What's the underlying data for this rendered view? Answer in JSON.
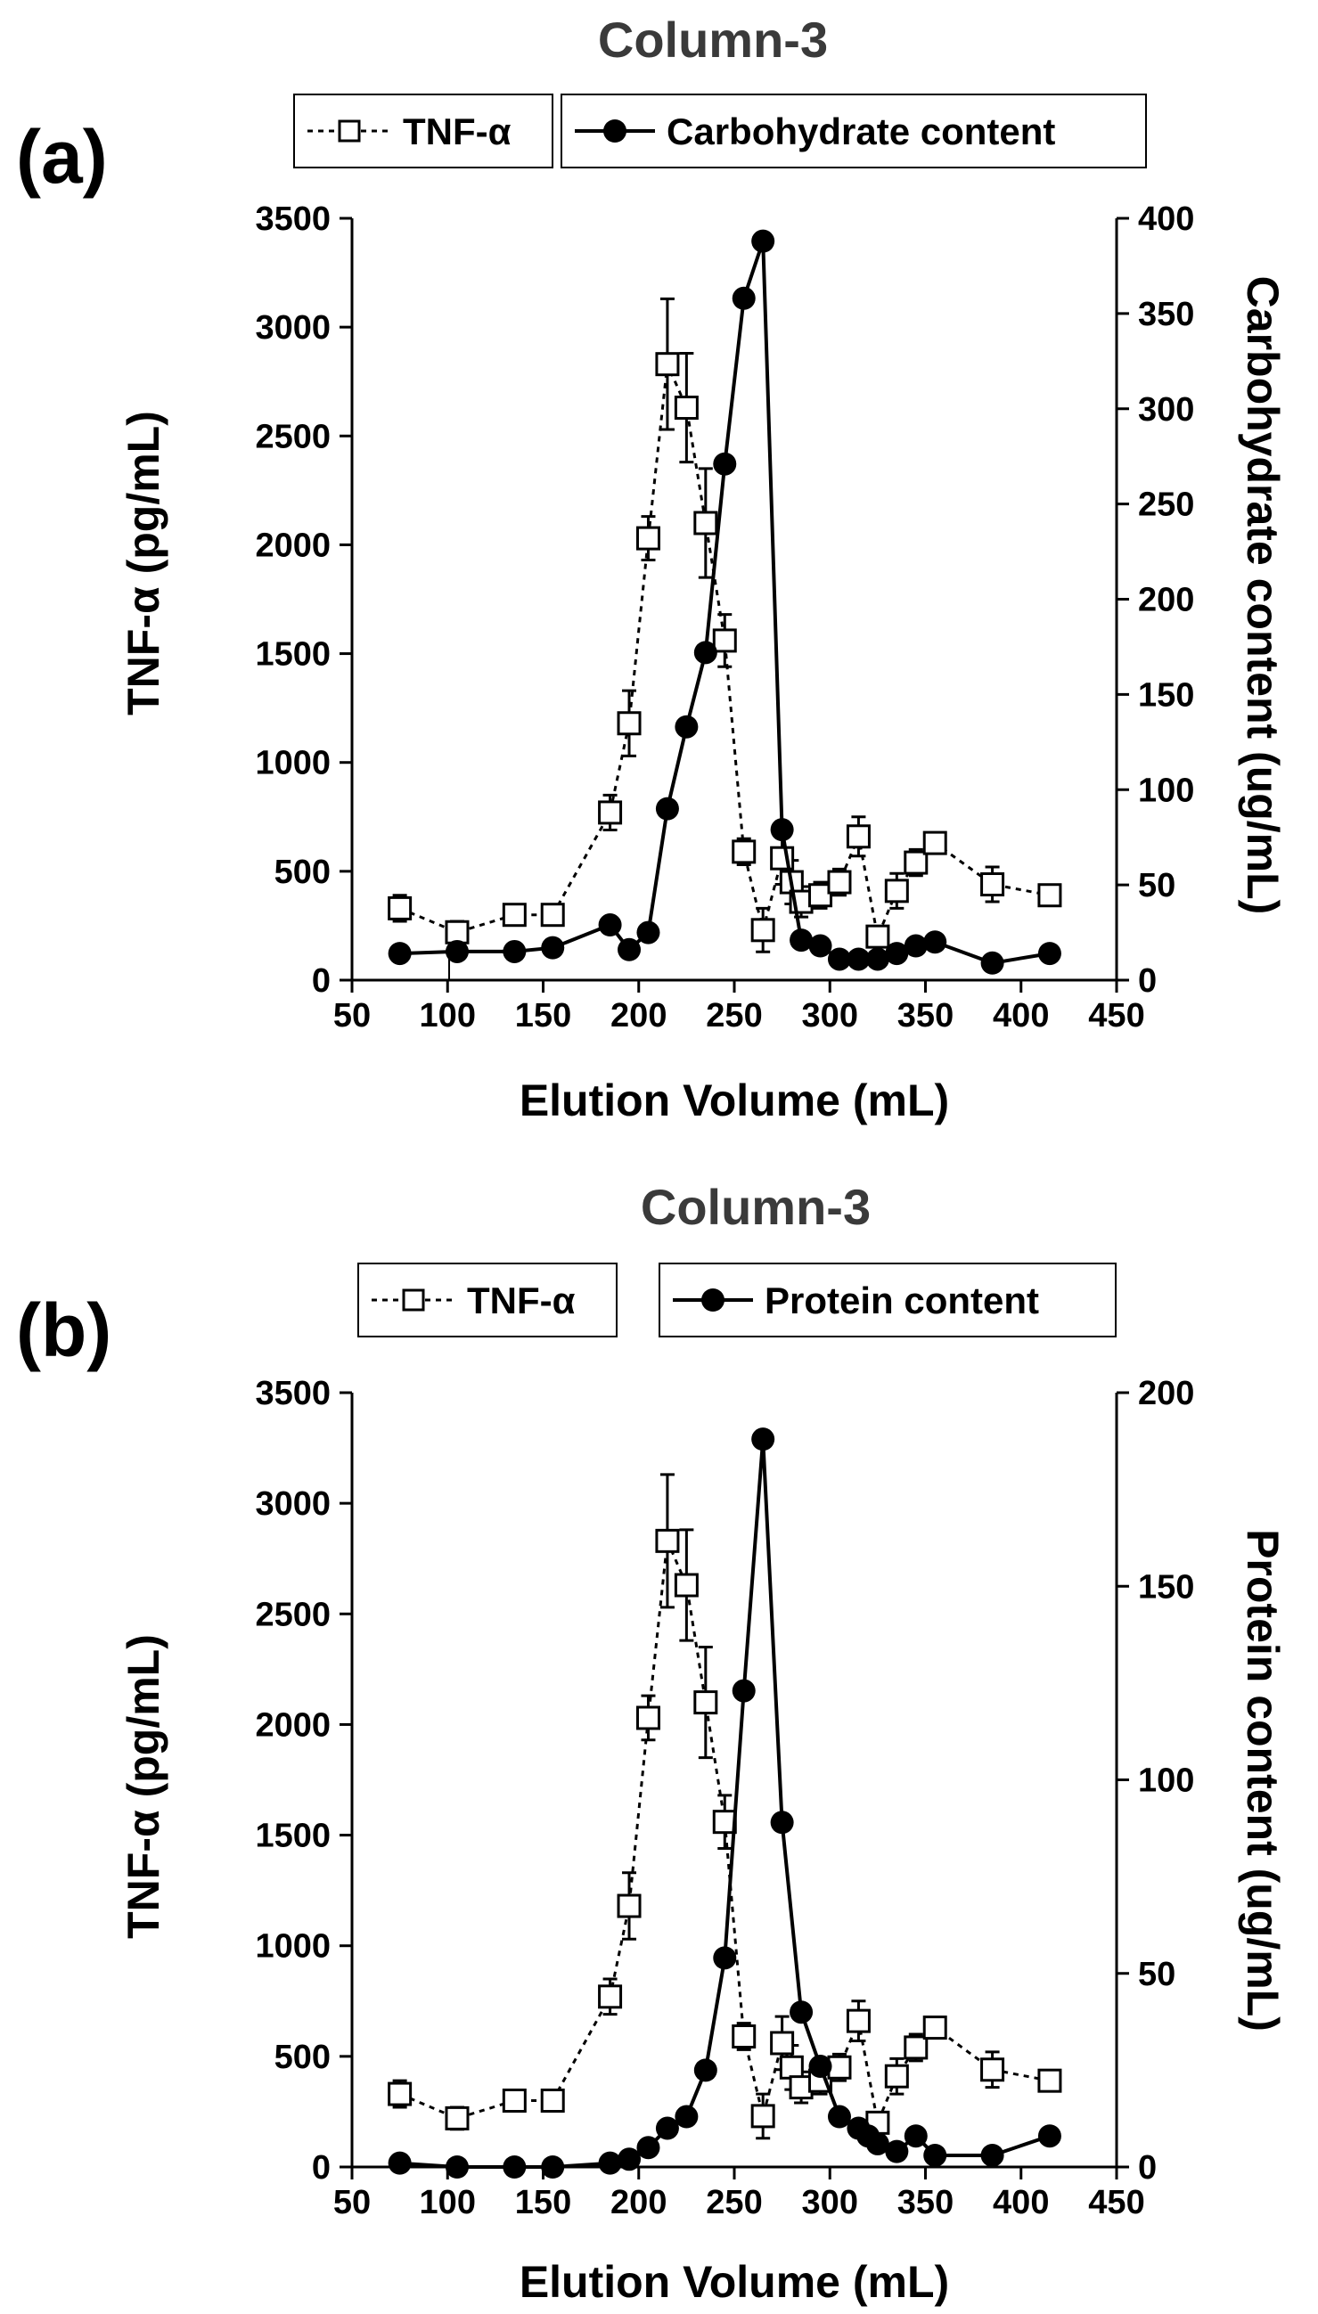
{
  "chart_data": [
    {
      "panel": "(a)",
      "type": "line",
      "title": "Column-3",
      "xlabel": "Elution Volume (mL)",
      "ylabel": "TNF-α (pg/mL)",
      "y2label": "Carbohydrate content (ug/mL)",
      "xlim": [
        50,
        450
      ],
      "ylim": [
        0,
        3500
      ],
      "y2lim": [
        0,
        400
      ],
      "xticks": [
        "50",
        "100",
        "150",
        "200",
        "250",
        "300",
        "350",
        "400",
        "450"
      ],
      "yticks": [
        "0",
        "500",
        "1000",
        "1500",
        "2000",
        "2500",
        "3000",
        "3500"
      ],
      "y2ticks": [
        "0",
        "50",
        "100",
        "150",
        "200",
        "250",
        "300",
        "350",
        "400"
      ],
      "legend": [
        "TNF-α",
        "Carbohydrate content"
      ],
      "series": [
        {
          "name": "TNF-α",
          "axis": "left",
          "style": "dashed-open-square",
          "x": [
            75,
            105,
            135,
            155,
            185,
            195,
            205,
            215,
            225,
            235,
            245,
            255,
            265,
            275,
            280,
            285,
            295,
            305,
            315,
            325,
            335,
            345,
            355,
            385,
            415
          ],
          "values": [
            330,
            220,
            300,
            300,
            770,
            1180,
            2030,
            2830,
            2630,
            2100,
            1560,
            590,
            230,
            560,
            450,
            360,
            390,
            450,
            660,
            200,
            410,
            540,
            630,
            440,
            390
          ],
          "errors": [
            60,
            50,
            40,
            40,
            80,
            150,
            100,
            300,
            250,
            250,
            120,
            60,
            100,
            120,
            100,
            70,
            60,
            60,
            90,
            30,
            80,
            60,
            40,
            80,
            30
          ]
        },
        {
          "name": "Carbohydrate content",
          "axis": "right",
          "style": "solid-filled-circle",
          "x": [
            75,
            105,
            135,
            155,
            185,
            195,
            205,
            215,
            225,
            235,
            245,
            255,
            265,
            275,
            285,
            295,
            305,
            315,
            325,
            335,
            345,
            355,
            385,
            415
          ],
          "values": [
            14,
            15,
            15,
            17,
            29,
            16,
            25,
            90,
            133,
            172,
            271,
            358,
            388,
            79,
            21,
            18,
            11,
            11,
            11,
            14,
            18,
            20,
            9,
            14
          ]
        }
      ]
    },
    {
      "panel": "(b)",
      "type": "line",
      "title": "Column-3",
      "xlabel": "Elution Volume (mL)",
      "ylabel": "TNF-α (pg/mL)",
      "y2label": "Protein content (ug/mL)",
      "xlim": [
        50,
        450
      ],
      "ylim": [
        0,
        3500
      ],
      "y2lim": [
        0,
        200
      ],
      "xticks": [
        "50",
        "100",
        "150",
        "200",
        "250",
        "300",
        "350",
        "400",
        "450"
      ],
      "yticks": [
        "0",
        "500",
        "1000",
        "1500",
        "2000",
        "2500",
        "3000",
        "3500"
      ],
      "y2ticks": [
        "0",
        "50",
        "100",
        "150",
        "200"
      ],
      "legend": [
        "TNF-α",
        "Protein content"
      ],
      "series": [
        {
          "name": "TNF-α",
          "axis": "left",
          "style": "dashed-open-square",
          "x": [
            75,
            105,
            135,
            155,
            185,
            195,
            205,
            215,
            225,
            235,
            245,
            255,
            265,
            275,
            280,
            285,
            295,
            305,
            315,
            325,
            335,
            345,
            355,
            385,
            415
          ],
          "values": [
            330,
            220,
            300,
            300,
            770,
            1180,
            2030,
            2830,
            2630,
            2100,
            1560,
            590,
            230,
            560,
            450,
            360,
            390,
            450,
            660,
            200,
            410,
            540,
            630,
            440,
            390
          ],
          "errors": [
            60,
            50,
            40,
            40,
            80,
            150,
            100,
            300,
            250,
            250,
            120,
            60,
            100,
            120,
            100,
            70,
            60,
            60,
            90,
            30,
            80,
            60,
            40,
            80,
            30
          ]
        },
        {
          "name": "Protein content",
          "axis": "right",
          "style": "solid-filled-circle",
          "x": [
            75,
            105,
            135,
            155,
            185,
            195,
            205,
            215,
            225,
            235,
            245,
            255,
            265,
            275,
            285,
            295,
            305,
            315,
            320,
            325,
            335,
            345,
            355,
            385,
            415
          ],
          "values": [
            1,
            0,
            0,
            0,
            1,
            2,
            5,
            10,
            13,
            25,
            54,
            123,
            188,
            89,
            40,
            26,
            13,
            10,
            8,
            6,
            4,
            8,
            3,
            3,
            8
          ]
        }
      ]
    }
  ]
}
